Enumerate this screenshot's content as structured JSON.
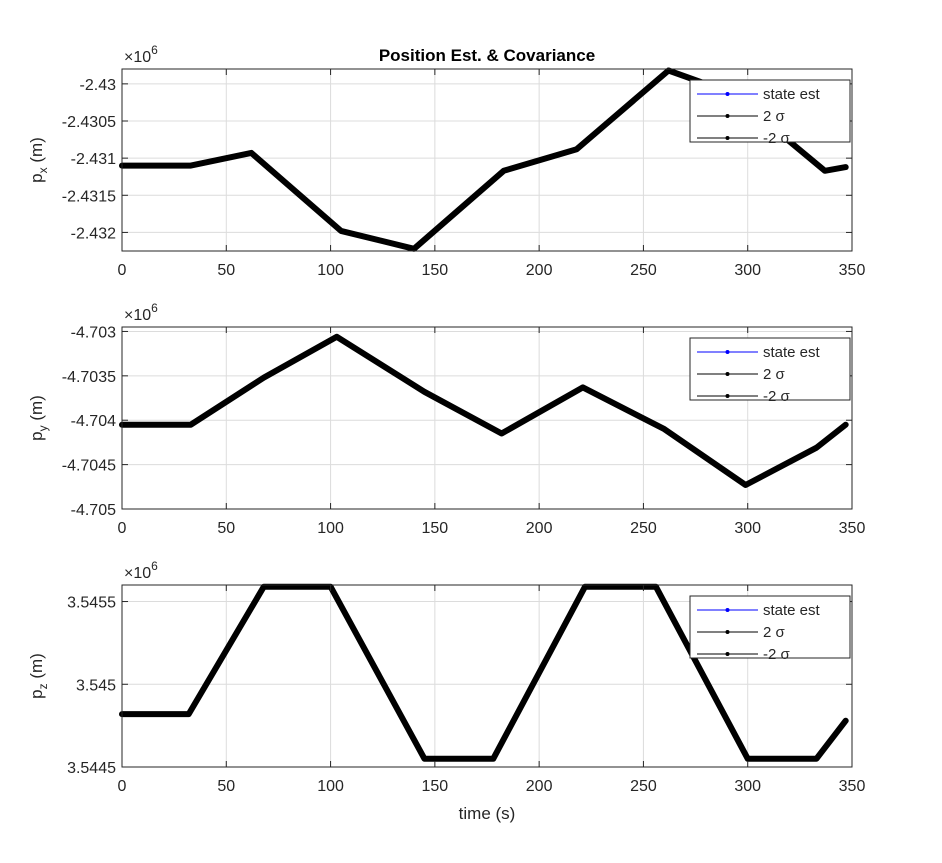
{
  "figure": {
    "title": "Position Est. & Covariance",
    "xlabel": "time (s)",
    "legend_labels": [
      "state est",
      "2 σ",
      "-2 σ"
    ],
    "exponent_base": "×10",
    "exponent_power": "6"
  },
  "colors": {
    "state_est": "#0000ff",
    "sigma": "#000000",
    "grid": "#dcdcdc",
    "axis": "#262626"
  },
  "chart_data": [
    {
      "type": "line",
      "title": "Position Est. & Covariance",
      "xlabel": "",
      "ylabel_main": "p",
      "ylabel_sub": "x",
      "ylabel_unit": "(m)",
      "xlim": [
        0,
        350
      ],
      "ylim": [
        -2432.25,
        -2429.8
      ],
      "xticks": [
        0,
        50,
        100,
        150,
        200,
        250,
        300,
        350
      ],
      "yticks": [
        -2432,
        -2431.5,
        -2431,
        -2430.5,
        -2430
      ],
      "ytick_labels": [
        "-2.432",
        "-2.4315",
        "-2.431",
        "-2.4305",
        "-2.43"
      ],
      "exponent": "6",
      "legend": "top-right",
      "grid": true,
      "series": [
        {
          "name": "state est",
          "x": [
            0,
            33,
            62,
            105,
            140,
            183,
            218,
            262,
            292,
            337,
            347
          ],
          "y": [
            -2431.1,
            -2431.1,
            -2430.93,
            -2431.98,
            -2432.22,
            -2431.17,
            -2430.88,
            -2429.82,
            -2430.12,
            -2431.17,
            -2431.12
          ]
        },
        {
          "name": "2 σ",
          "x": [
            0,
            33,
            62,
            105,
            140,
            183,
            218,
            262,
            292,
            337,
            347
          ],
          "y": [
            -2431.09,
            -2431.09,
            -2430.92,
            -2431.97,
            -2432.21,
            -2431.16,
            -2430.87,
            -2429.81,
            -2430.11,
            -2431.16,
            -2431.11
          ]
        },
        {
          "name": "-2 σ",
          "x": [
            0,
            33,
            62,
            105,
            140,
            183,
            218,
            262,
            292,
            337,
            347
          ],
          "y": [
            -2431.11,
            -2431.11,
            -2430.94,
            -2431.99,
            -2432.23,
            -2431.18,
            -2430.89,
            -2429.83,
            -2430.13,
            -2431.18,
            -2431.13
          ]
        }
      ]
    },
    {
      "type": "line",
      "title": "",
      "xlabel": "",
      "ylabel_main": "p",
      "ylabel_sub": "y",
      "ylabel_unit": "(m)",
      "xlim": [
        0,
        350
      ],
      "ylim": [
        -4705,
        -4702.95
      ],
      "xticks": [
        0,
        50,
        100,
        150,
        200,
        250,
        300,
        350
      ],
      "yticks": [
        -4705,
        -4704.5,
        -4704,
        -4703.5,
        -4703
      ],
      "ytick_labels": [
        "-4.705",
        "-4.7045",
        "-4.704",
        "-4.7035",
        "-4.703"
      ],
      "exponent": "6",
      "legend": "top-right",
      "grid": true,
      "series": [
        {
          "name": "state est",
          "x": [
            0,
            33,
            68,
            103,
            145,
            182,
            221,
            260,
            299,
            333,
            347
          ],
          "y": [
            -4704.05,
            -4704.05,
            -4703.52,
            -4703.06,
            -4703.68,
            -4704.15,
            -4703.63,
            -4704.1,
            -4704.73,
            -4704.31,
            -4704.05
          ]
        },
        {
          "name": "2 σ",
          "x": [
            0,
            33,
            68,
            103,
            145,
            182,
            221,
            260,
            299,
            333,
            347
          ],
          "y": [
            -4704.04,
            -4704.04,
            -4703.51,
            -4703.05,
            -4703.67,
            -4704.14,
            -4703.62,
            -4704.09,
            -4704.72,
            -4704.3,
            -4704.04
          ]
        },
        {
          "name": "-2 σ",
          "x": [
            0,
            33,
            68,
            103,
            145,
            182,
            221,
            260,
            299,
            333,
            347
          ],
          "y": [
            -4704.06,
            -4704.06,
            -4703.53,
            -4703.07,
            -4703.69,
            -4704.16,
            -4703.64,
            -4704.11,
            -4704.74,
            -4704.32,
            -4704.06
          ]
        }
      ]
    },
    {
      "type": "line",
      "title": "",
      "xlabel": "time (s)",
      "ylabel_main": "p",
      "ylabel_sub": "z",
      "ylabel_unit": "(m)",
      "xlim": [
        0,
        350
      ],
      "ylim": [
        3544.5,
        3545.6
      ],
      "xticks": [
        0,
        50,
        100,
        150,
        200,
        250,
        300,
        350
      ],
      "yticks": [
        3544.5,
        3545,
        3545.5
      ],
      "ytick_labels": [
        "3.5445",
        "3.545",
        "3.5455"
      ],
      "exponent": "6",
      "legend": "top-right",
      "grid": true,
      "series": [
        {
          "name": "state est",
          "x": [
            0,
            32,
            68,
            100,
            145,
            178,
            222,
            256,
            300,
            333,
            347
          ],
          "y": [
            3544.82,
            3544.82,
            3545.59,
            3545.59,
            3544.55,
            3544.55,
            3545.59,
            3545.59,
            3544.55,
            3544.55,
            3544.78
          ]
        },
        {
          "name": "2 σ",
          "x": [
            0,
            32,
            68,
            100,
            145,
            178,
            222,
            256,
            300,
            333,
            347
          ],
          "y": [
            3544.826,
            3544.826,
            3545.596,
            3545.596,
            3544.556,
            3544.556,
            3545.596,
            3545.596,
            3544.556,
            3544.556,
            3544.786
          ]
        },
        {
          "name": "-2 σ",
          "x": [
            0,
            32,
            68,
            100,
            145,
            178,
            222,
            256,
            300,
            333,
            347
          ],
          "y": [
            3544.814,
            3544.814,
            3545.584,
            3545.584,
            3544.544,
            3544.544,
            3545.584,
            3545.584,
            3544.544,
            3544.544,
            3544.774
          ]
        }
      ]
    }
  ]
}
